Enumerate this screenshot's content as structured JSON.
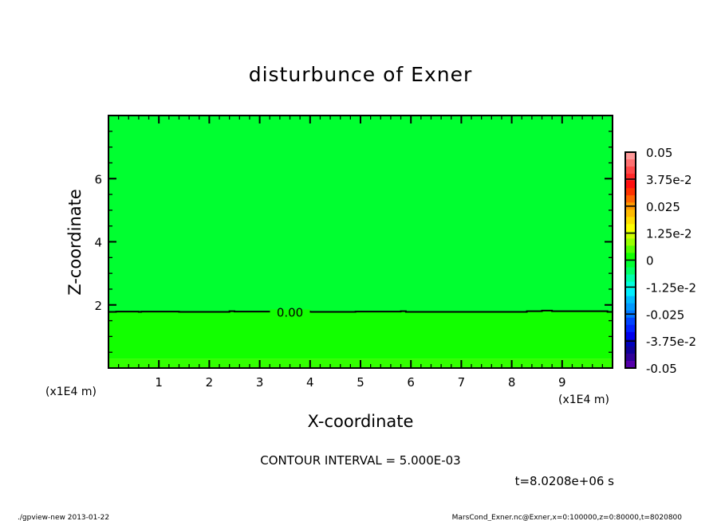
{
  "chart_data": {
    "type": "contour",
    "title": "disturbunce of Exner",
    "xlabel": "X-coordinate",
    "ylabel": "Z-coordinate",
    "x_unit_label": "(x1E4 m)",
    "xlim": [
      0,
      10
    ],
    "ylim": [
      0,
      8
    ],
    "x_ticks": [
      "1",
      "2",
      "3",
      "4",
      "5",
      "6",
      "7",
      "8",
      "9"
    ],
    "y_ticks": [
      "2",
      "4",
      "6"
    ],
    "contour_label": "0.00",
    "contour_zero_line": {
      "x": [
        0,
        0.15,
        0.6,
        0.65,
        1.4,
        2.4,
        2.5,
        4.0,
        4.9,
        5.8,
        5.9,
        8.2,
        8.3,
        8.6,
        8.8,
        9.9,
        10
      ],
      "z": [
        1.78,
        1.79,
        1.78,
        1.79,
        1.78,
        1.8,
        1.79,
        1.78,
        1.79,
        1.8,
        1.78,
        1.78,
        1.8,
        1.82,
        1.8,
        1.78,
        1.78
      ]
    },
    "regions": [
      {
        "from_z": 1.78,
        "to_z": 8,
        "level_range": [
          -0.005,
          0
        ],
        "color": "#00ff30"
      },
      {
        "from_z": 0.3,
        "to_z": 1.78,
        "level_range": [
          0,
          0.005
        ],
        "color": "#12ff00"
      },
      {
        "from_z": 0,
        "to_z": 0.3,
        "level_range": [
          0.005,
          0.01
        ],
        "color": "#33ff00"
      }
    ],
    "contour_interval_text": "CONTOUR INTERVAL = 5.000E-03",
    "time_text": "t=8.0208e+06 s",
    "colorbar": {
      "range": [
        -0.05,
        0.05
      ],
      "labels": [
        "0.05",
        "3.75e-2",
        "0.025",
        "1.25e-2",
        "0",
        "-1.25e-2",
        "-0.025",
        "-3.75e-2",
        "-0.05"
      ],
      "colors_top_to_bottom": [
        "#ff9999",
        "#ff7070",
        "#ff4848",
        "#ff2828",
        "#ff1010",
        "#ff3300",
        "#ff6600",
        "#ff9900",
        "#ffbb00",
        "#ffdd00",
        "#ffff00",
        "#ccff00",
        "#99ff00",
        "#55ff00",
        "#11ff00",
        "#00ff33",
        "#00ff66",
        "#00ffaa",
        "#00ffdd",
        "#00eeff",
        "#00bbff",
        "#0099ff",
        "#0077ff",
        "#0044ff",
        "#0022ff",
        "#0000ee",
        "#0000bb",
        "#100099",
        "#300099",
        "#5500aa"
      ]
    }
  },
  "footer": {
    "left": "./gpview-new  2013-01-22",
    "right": "MarsCond_Exner.nc@Exner,x=0:100000,z=0:80000,t=8020800"
  }
}
